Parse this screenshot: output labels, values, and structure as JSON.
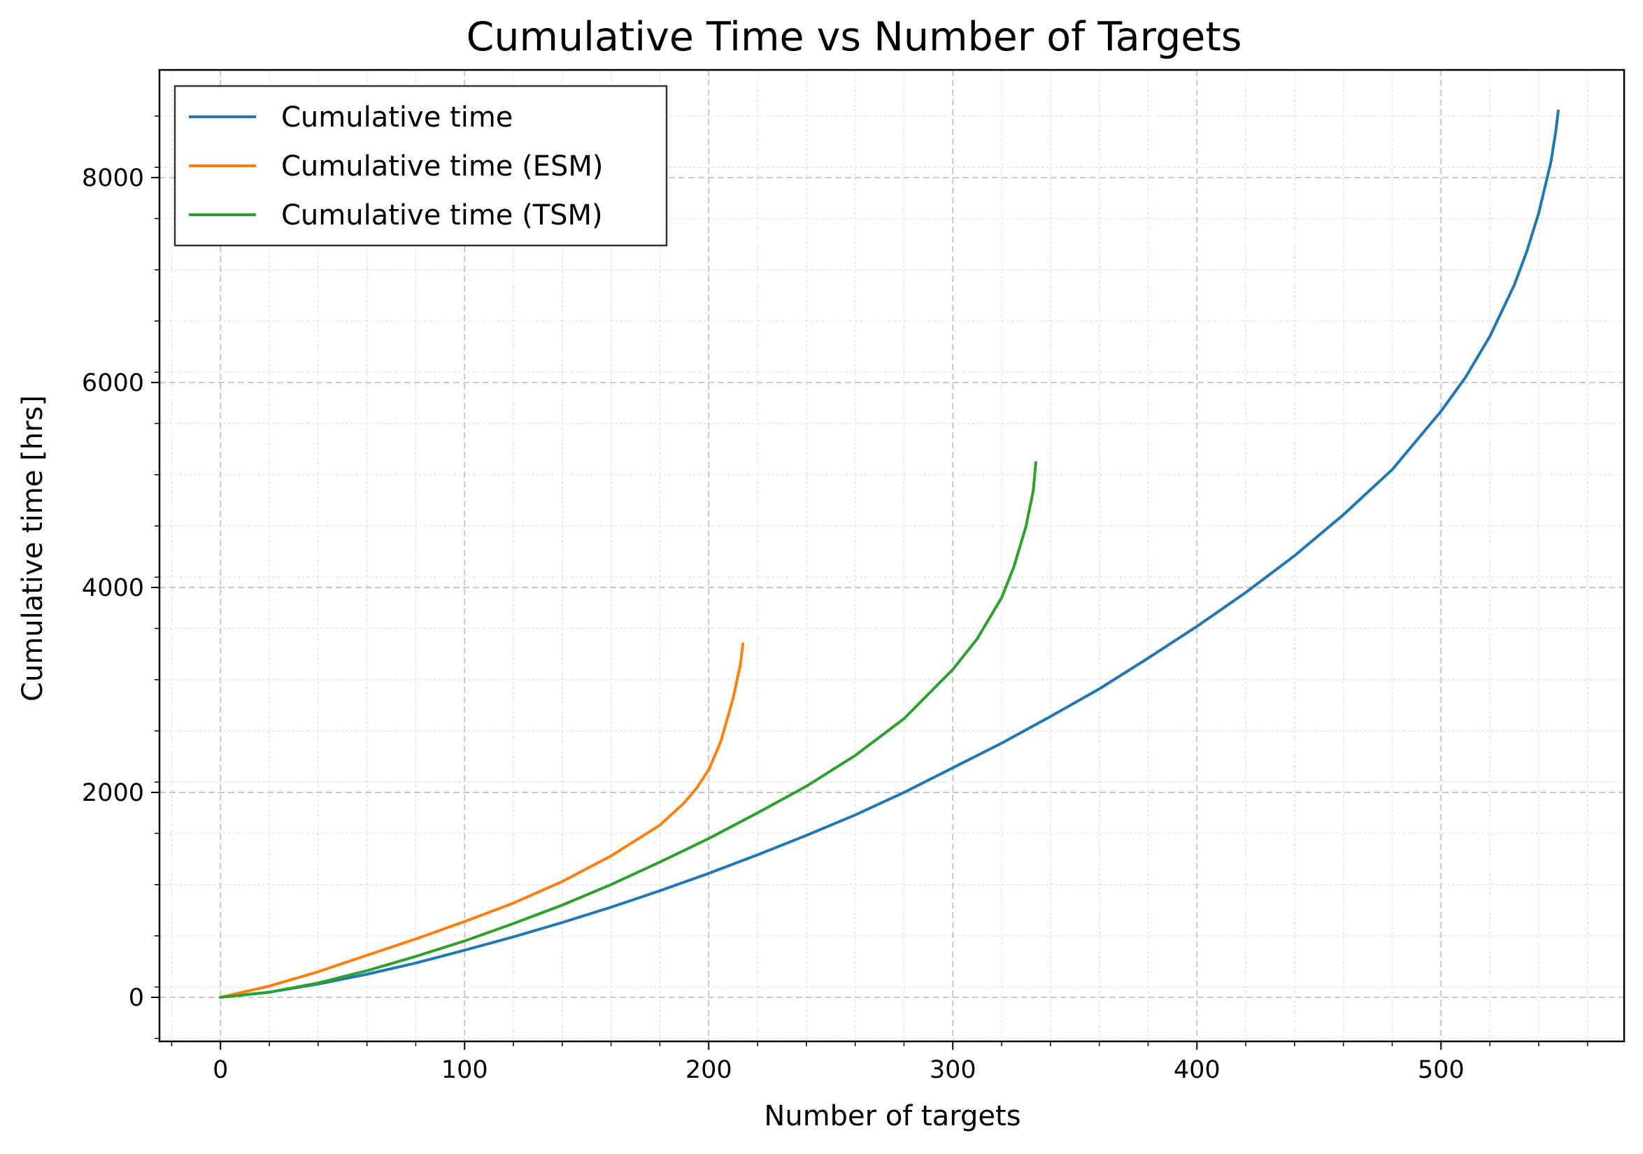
{
  "chart_data": {
    "type": "line",
    "title": "Cumulative Time vs Number of Targets",
    "xlabel": "Number of targets",
    "ylabel": "Cumulative time [hrs]",
    "xlim": [
      -25,
      575
    ],
    "ylim": [
      -430,
      9050
    ],
    "x_ticks": [
      0,
      100,
      200,
      300,
      400,
      500
    ],
    "y_ticks": [
      0,
      2000,
      4000,
      6000,
      8000
    ],
    "x_tick_labels": [
      "0",
      "100",
      "200",
      "300",
      "400",
      "500"
    ],
    "y_tick_labels": [
      "0",
      "2000",
      "4000",
      "6000",
      "8000"
    ],
    "grid": true,
    "legend_position": "top-left",
    "series": [
      {
        "name": "Cumulative time",
        "color": "#1f77b4",
        "x": [
          0,
          20,
          40,
          60,
          80,
          100,
          120,
          140,
          160,
          180,
          200,
          220,
          240,
          260,
          280,
          300,
          320,
          340,
          360,
          380,
          400,
          420,
          440,
          460,
          480,
          500,
          510,
          520,
          530,
          535,
          540,
          545,
          547,
          548
        ],
        "y": [
          0,
          50,
          130,
          225,
          335,
          460,
          590,
          730,
          880,
          1040,
          1210,
          1390,
          1580,
          1780,
          2000,
          2240,
          2480,
          2740,
          3010,
          3310,
          3620,
          3950,
          4310,
          4710,
          5150,
          5720,
          6050,
          6450,
          6950,
          7270,
          7650,
          8150,
          8450,
          8650
        ]
      },
      {
        "name": "Cumulative time (ESM)",
        "color": "#ff7f0e",
        "x": [
          0,
          20,
          40,
          60,
          80,
          100,
          120,
          140,
          160,
          180,
          190,
          195,
          200,
          205,
          210,
          213,
          214
        ],
        "y": [
          0,
          110,
          250,
          410,
          570,
          740,
          920,
          1130,
          1380,
          1680,
          1900,
          2040,
          2220,
          2500,
          2920,
          3250,
          3450
        ]
      },
      {
        "name": "Cumulative time (TSM)",
        "color": "#2ca02c",
        "x": [
          0,
          20,
          40,
          60,
          80,
          100,
          120,
          140,
          160,
          180,
          200,
          220,
          240,
          260,
          280,
          300,
          310,
          320,
          325,
          330,
          333,
          334
        ],
        "y": [
          0,
          50,
          140,
          260,
          400,
          550,
          720,
          900,
          1100,
          1320,
          1550,
          1800,
          2060,
          2360,
          2720,
          3200,
          3500,
          3900,
          4200,
          4600,
          4950,
          5220
        ]
      }
    ]
  }
}
